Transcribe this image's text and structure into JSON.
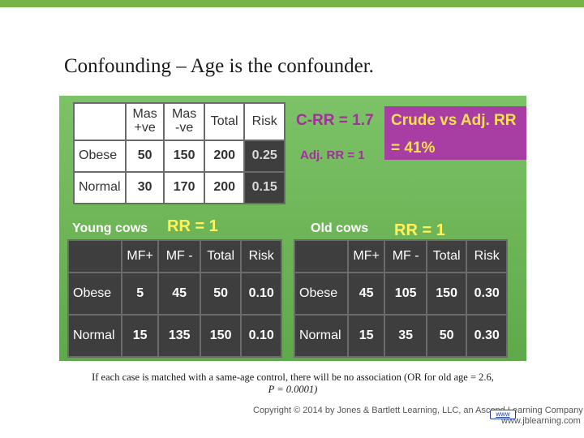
{
  "slide": {
    "title": "Confounding – Age is the confounder.",
    "caption_line1": "If each case is matched with a same-age control, there will be no association (OR for old age = 2.6,",
    "caption_line2": "P = 0.0001)",
    "copyright": "Copyright © 2014 by Jones & Bartlett Learning, LLC, an Ascend Learning Company",
    "site": "www.jblearning.com",
    "link_badge": "www"
  },
  "colors": {
    "top_bar": "#77b448",
    "panel_green": "#6db457",
    "magenta": "#a83ea3",
    "yellow_text": "#ffe24d",
    "purple_text": "#a32f9b"
  },
  "crude": {
    "headers": [
      "",
      "Mas\n+ve",
      "Mas\n-ve",
      "Total",
      "Risk"
    ],
    "rows": [
      {
        "label": "Obese",
        "mas_pos": "50",
        "mas_neg": "150",
        "total": "200",
        "risk": "0.25"
      },
      {
        "label": "Normal",
        "mas_pos": "30",
        "mas_neg": "170",
        "total": "200",
        "risk": "0.15"
      }
    ],
    "c_rr": "C-RR = 1.7",
    "adj_rr": "Adj. RR = 1",
    "comparison_title": "Crude vs Adj. RR",
    "comparison_value": "= 41%"
  },
  "young": {
    "label": "Young cows",
    "rr": "RR = 1",
    "headers": [
      "",
      "MF+",
      "MF -",
      "Total",
      "Risk"
    ],
    "rows": [
      {
        "label": "Obese",
        "mf_pos": "5",
        "mf_neg": "45",
        "total": "50",
        "risk": "0.10"
      },
      {
        "label": "Normal",
        "mf_pos": "15",
        "mf_neg": "135",
        "total": "150",
        "risk": "0.10"
      }
    ]
  },
  "old": {
    "label": "Old cows",
    "rr": "RR = 1",
    "headers": [
      "",
      "MF+",
      "MF -",
      "Total",
      "Risk"
    ],
    "rows": [
      {
        "label": "Obese",
        "mf_pos": "45",
        "mf_neg": "105",
        "total": "150",
        "risk": "0.30"
      },
      {
        "label": "Normal",
        "mf_pos": "15",
        "mf_neg": "35",
        "total": "50",
        "risk": "0.30"
      }
    ]
  }
}
